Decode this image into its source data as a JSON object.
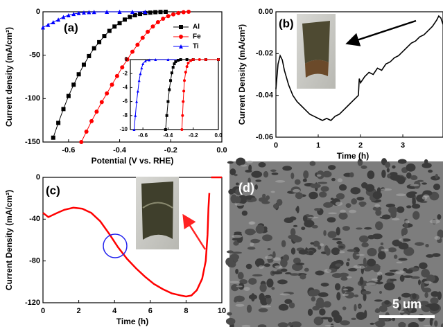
{
  "chart_data": [
    {
      "type": "line",
      "label": "(a)",
      "xlabel": "Potential (V vs. RHE)",
      "ylabel": "Current density (mA/cm²)",
      "xlim": [
        -0.7,
        0.0
      ],
      "xticks": [
        -0.6,
        -0.4,
        -0.2,
        {
          "value": 0,
          "label": "0.0"
        }
      ],
      "ylim": [
        -150,
        0
      ],
      "yticks": [
        0,
        -50,
        -100,
        -150
      ],
      "legend": "upper right",
      "series": [
        {
          "name": "Al",
          "color": "#000000",
          "marker": "square",
          "x": [
            -0.66,
            -0.64,
            -0.62,
            -0.6,
            -0.58,
            -0.56,
            -0.54,
            -0.52,
            -0.5,
            -0.48,
            -0.46,
            -0.44,
            -0.42,
            -0.4,
            -0.38,
            -0.36,
            -0.34,
            -0.32,
            -0.3,
            -0.28,
            -0.26,
            -0.24,
            -0.22
          ],
          "values": [
            -145,
            -128,
            -112,
            -97,
            -84,
            -72,
            -61,
            -51,
            -42,
            -35,
            -28,
            -22,
            -17,
            -13,
            -9,
            -6,
            -4,
            -2.5,
            -1.5,
            -1,
            -0.5,
            -0.2,
            0
          ]
        },
        {
          "name": "Fe",
          "color": "#ff0000",
          "marker": "circle",
          "x": [
            -0.55,
            -0.53,
            -0.51,
            -0.49,
            -0.47,
            -0.45,
            -0.43,
            -0.41,
            -0.39,
            -0.37,
            -0.35,
            -0.33,
            -0.31,
            -0.29,
            -0.27,
            -0.25,
            -0.23,
            -0.21,
            -0.19,
            -0.17,
            -0.15,
            -0.13
          ],
          "values": [
            -150,
            -138,
            -126,
            -115,
            -104,
            -94,
            -84,
            -74,
            -64,
            -55,
            -46,
            -38,
            -30,
            -23,
            -17,
            -12,
            -8,
            -5,
            -3,
            -1.5,
            -0.5,
            0
          ]
        },
        {
          "name": "Ti",
          "color": "#0000ff",
          "marker": "triangle",
          "x": [
            -0.7,
            -0.68,
            -0.66,
            -0.64,
            -0.62,
            -0.6,
            -0.58,
            -0.56,
            -0.54,
            -0.52,
            -0.5,
            -0.45,
            -0.4,
            -0.35,
            -0.3
          ],
          "values": [
            -18,
            -15,
            -12,
            -9,
            -6,
            -4,
            -2.5,
            -1.5,
            -0.8,
            -0.4,
            -0.2,
            0,
            0,
            0,
            0
          ]
        }
      ]
    },
    {
      "type": "line",
      "xlim": [
        -0.7,
        0.0
      ],
      "xticks": [
        -0.6,
        -0.4,
        -0.2,
        {
          "value": 0,
          "label": "0.0"
        }
      ],
      "ylim": [
        -10,
        0
      ],
      "yticks": [
        0,
        -2,
        -4,
        -6,
        -8,
        -10
      ],
      "series": [
        {
          "color": "#0000ff",
          "marker": "triangle",
          "x": [
            -0.67,
            -0.66,
            -0.65,
            -0.64,
            -0.63,
            -0.62,
            -0.61,
            -0.6,
            -0.58,
            -0.55,
            -0.5,
            -0.4,
            -0.3,
            -0.2,
            -0.1,
            0
          ],
          "values": [
            -10,
            -8,
            -6,
            -4.5,
            -3,
            -2,
            -1.2,
            -0.6,
            -0.2,
            -0.05,
            0,
            0,
            0,
            0,
            0,
            0
          ]
        },
        {
          "color": "#000000",
          "marker": "square",
          "x": [
            -0.42,
            -0.41,
            -0.4,
            -0.39,
            -0.38,
            -0.37,
            -0.36,
            -0.35,
            -0.34,
            -0.32,
            -0.3,
            -0.25,
            -0.2,
            -0.1,
            0
          ],
          "values": [
            -10,
            -8,
            -6,
            -4.3,
            -3,
            -1.9,
            -1.1,
            -0.6,
            -0.3,
            -0.1,
            0,
            0,
            0,
            0,
            0
          ]
        },
        {
          "color": "#ff0000",
          "marker": "circle",
          "x": [
            -0.29,
            -0.285,
            -0.28,
            -0.275,
            -0.27,
            -0.26,
            -0.25,
            -0.24,
            -0.22,
            -0.2,
            -0.15,
            -0.1,
            0
          ],
          "values": [
            -10,
            -8,
            -6,
            -4.5,
            -3,
            -1.8,
            -1,
            -0.5,
            -0.15,
            0,
            0,
            0,
            0
          ]
        }
      ]
    },
    {
      "type": "line",
      "label": "(b)",
      "xlabel": "Time (h)",
      "ylabel": "Current Density (mA/cm²)",
      "xlim": [
        0,
        3.95
      ],
      "xticks": [
        0,
        1,
        2,
        3
      ],
      "ylim": [
        -0.06,
        0.0
      ],
      "yticks": [
        -0.06,
        -0.04,
        -0.02,
        {
          "value": 0,
          "label": "0.00"
        }
      ],
      "series": [
        {
          "color": "#000000",
          "x": [
            0,
            0.05,
            0.1,
            0.15,
            0.2,
            0.3,
            0.4,
            0.5,
            0.6,
            0.7,
            0.8,
            0.9,
            1.0,
            1.1,
            1.2,
            1.3,
            1.4,
            1.5,
            1.6,
            1.7,
            1.8,
            1.9,
            1.95,
            1.97,
            2.0,
            2.1,
            2.2,
            2.3,
            2.4,
            2.5,
            2.6,
            2.7,
            2.8,
            2.9,
            3.0,
            3.1,
            3.2,
            3.3,
            3.4,
            3.5,
            3.6,
            3.7,
            3.8,
            3.85,
            3.9,
            3.95
          ],
          "values": [
            -0.037,
            -0.025,
            -0.021,
            -0.023,
            -0.028,
            -0.035,
            -0.04,
            -0.043,
            -0.045,
            -0.047,
            -0.049,
            -0.05,
            -0.051,
            -0.052,
            -0.051,
            -0.052,
            -0.05,
            -0.049,
            -0.047,
            -0.045,
            -0.043,
            -0.041,
            -0.04,
            -0.032,
            -0.034,
            -0.031,
            -0.029,
            -0.03,
            -0.027,
            -0.028,
            -0.025,
            -0.024,
            -0.022,
            -0.021,
            -0.019,
            -0.017,
            -0.015,
            -0.014,
            -0.012,
            -0.011,
            -0.009,
            -0.007,
            -0.004,
            -0.002,
            -0.003,
            -0.006
          ]
        }
      ]
    },
    {
      "type": "line",
      "label": "(c)",
      "xlabel": "Time (h)",
      "ylabel": "Current Density (mA/cm²)",
      "xlim": [
        0,
        10
      ],
      "xticks": [
        0,
        2,
        4,
        6,
        8,
        10
      ],
      "ylim": [
        -120,
        0
      ],
      "yticks": [
        0,
        -40,
        -80,
        -120
      ],
      "series": [
        {
          "color": "#ff0000",
          "x": [
            0,
            0.3,
            0.8,
            1.2,
            1.7,
            2.2,
            2.7,
            3.2,
            3.7,
            4.2,
            4.7,
            5.2,
            5.7,
            6.2,
            6.7,
            7.2,
            7.7,
            8.0,
            8.3,
            8.6,
            8.9,
            9.1,
            9.2,
            9.25,
            9.3,
            9.35,
            9.4,
            10
          ],
          "values": [
            -34,
            -38,
            -34,
            -31,
            -29,
            -30,
            -34,
            -42,
            -54,
            -67,
            -78,
            -87,
            -95,
            -102,
            -107,
            -111,
            -113,
            -114,
            -113,
            -108,
            -97,
            -80,
            -55,
            -30,
            -15,
            null,
            0,
            0
          ]
        }
      ]
    }
  ],
  "image": {
    "label": "(d)",
    "scale_bar": "5 um"
  }
}
